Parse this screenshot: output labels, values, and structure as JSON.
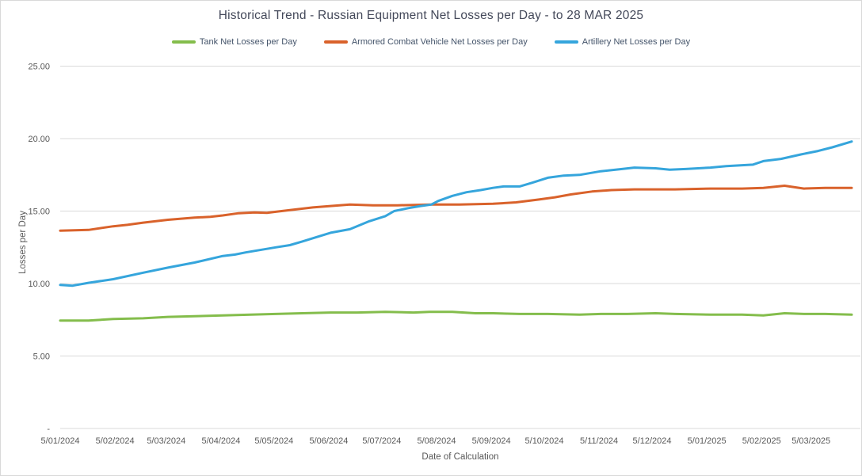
{
  "title": "Historical Trend - Russian Equipment Net Losses per Day - to 28 MAR 2025",
  "legend": {
    "items": [
      {
        "label": "Tank Net Losses per Day",
        "color": "#84bd4c"
      },
      {
        "label": "Armored Combat Vehicle Net Losses per Day",
        "color": "#d9622b"
      },
      {
        "label": "Artillery Net Losses per Day",
        "color": "#35a5dc"
      }
    ]
  },
  "y_axis": {
    "title": "Losses per Day",
    "ticks": [
      {
        "label": "25.00",
        "value": 25
      },
      {
        "label": "20.00",
        "value": 20
      },
      {
        "label": "15.00",
        "value": 15
      },
      {
        "label": "10.00",
        "value": 10
      },
      {
        "label": "5.00",
        "value": 5
      },
      {
        "label": "-",
        "value": 0
      }
    ]
  },
  "x_axis": {
    "title": "Date of Calculation",
    "ticks": [
      {
        "label": "5/01/2024",
        "day": 0
      },
      {
        "label": "5/02/2024",
        "day": 31
      },
      {
        "label": "5/03/2024",
        "day": 60
      },
      {
        "label": "5/04/2024",
        "day": 91
      },
      {
        "label": "5/05/2024",
        "day": 121
      },
      {
        "label": "5/06/2024",
        "day": 152
      },
      {
        "label": "5/07/2024",
        "day": 182
      },
      {
        "label": "5/08/2024",
        "day": 213
      },
      {
        "label": "5/09/2024",
        "day": 244
      },
      {
        "label": "5/10/2024",
        "day": 274
      },
      {
        "label": "5/11/2024",
        "day": 305
      },
      {
        "label": "5/12/2024",
        "day": 335
      },
      {
        "label": "5/01/2025",
        "day": 366
      },
      {
        "label": "5/02/2025",
        "day": 397
      },
      {
        "label": "5/03/2025",
        "day": 425
      }
    ]
  },
  "chart_data": {
    "type": "line",
    "title": "Historical Trend - Russian Equipment Net Losses per Day - to 28 MAR 2025",
    "xlabel": "Date of Calculation",
    "ylabel": "Losses per Day",
    "x_unit": "days since 5/01/2024 (x ticks = 5th of each month)",
    "x_range": [
      0,
      448
    ],
    "ylim": [
      0,
      25
    ],
    "grid": true,
    "legend_position": "top",
    "series": [
      {
        "name": "Tank Net Losses per Day",
        "color": "#84bd4c",
        "points": [
          [
            0,
            7.45
          ],
          [
            16,
            7.45
          ],
          [
            30,
            7.55
          ],
          [
            47,
            7.6
          ],
          [
            61,
            7.7
          ],
          [
            76,
            7.75
          ],
          [
            92,
            7.8
          ],
          [
            108,
            7.85
          ],
          [
            122,
            7.9
          ],
          [
            137,
            7.95
          ],
          [
            153,
            8.0
          ],
          [
            168,
            8.0
          ],
          [
            184,
            8.05
          ],
          [
            200,
            8.0
          ],
          [
            209,
            8.05
          ],
          [
            222,
            8.05
          ],
          [
            235,
            7.95
          ],
          [
            245,
            7.95
          ],
          [
            260,
            7.9
          ],
          [
            276,
            7.9
          ],
          [
            294,
            7.85
          ],
          [
            306,
            7.9
          ],
          [
            321,
            7.9
          ],
          [
            337,
            7.95
          ],
          [
            348,
            7.9
          ],
          [
            368,
            7.85
          ],
          [
            386,
            7.85
          ],
          [
            398,
            7.8
          ],
          [
            410,
            7.95
          ],
          [
            421,
            7.9
          ],
          [
            433,
            7.9
          ],
          [
            448,
            7.85
          ]
        ]
      },
      {
        "name": "Armored Combat Vehicle Net Losses per Day",
        "color": "#d9622b",
        "points": [
          [
            0,
            13.65
          ],
          [
            16,
            13.7
          ],
          [
            30,
            13.95
          ],
          [
            38,
            14.05
          ],
          [
            47,
            14.2
          ],
          [
            61,
            14.4
          ],
          [
            76,
            14.55
          ],
          [
            85,
            14.6
          ],
          [
            92,
            14.7
          ],
          [
            101,
            14.85
          ],
          [
            110,
            14.9
          ],
          [
            117,
            14.88
          ],
          [
            122,
            14.95
          ],
          [
            132,
            15.1
          ],
          [
            143,
            15.25
          ],
          [
            153,
            15.35
          ],
          [
            164,
            15.45
          ],
          [
            177,
            15.4
          ],
          [
            191,
            15.4
          ],
          [
            210,
            15.45
          ],
          [
            226,
            15.45
          ],
          [
            245,
            15.5
          ],
          [
            258,
            15.6
          ],
          [
            271,
            15.8
          ],
          [
            280,
            15.95
          ],
          [
            289,
            16.15
          ],
          [
            301,
            16.35
          ],
          [
            312,
            16.45
          ],
          [
            325,
            16.5
          ],
          [
            348,
            16.5
          ],
          [
            368,
            16.55
          ],
          [
            386,
            16.55
          ],
          [
            398,
            16.6
          ],
          [
            410,
            16.75
          ],
          [
            421,
            16.55
          ],
          [
            433,
            16.6
          ],
          [
            448,
            16.6
          ]
        ]
      },
      {
        "name": "Artillery Net Losses per Day",
        "color": "#35a5dc",
        "points": [
          [
            0,
            9.9
          ],
          [
            7,
            9.85
          ],
          [
            16,
            10.05
          ],
          [
            30,
            10.3
          ],
          [
            47,
            10.75
          ],
          [
            61,
            11.1
          ],
          [
            76,
            11.45
          ],
          [
            92,
            11.9
          ],
          [
            99,
            12.0
          ],
          [
            105,
            12.15
          ],
          [
            122,
            12.5
          ],
          [
            130,
            12.65
          ],
          [
            137,
            12.9
          ],
          [
            145,
            13.2
          ],
          [
            153,
            13.5
          ],
          [
            164,
            13.75
          ],
          [
            175,
            14.3
          ],
          [
            184,
            14.65
          ],
          [
            189,
            15.0
          ],
          [
            197,
            15.2
          ],
          [
            204,
            15.35
          ],
          [
            210,
            15.45
          ],
          [
            214,
            15.7
          ],
          [
            222,
            16.05
          ],
          [
            230,
            16.3
          ],
          [
            238,
            16.45
          ],
          [
            245,
            16.6
          ],
          [
            251,
            16.7
          ],
          [
            260,
            16.7
          ],
          [
            267,
            16.95
          ],
          [
            276,
            17.3
          ],
          [
            285,
            17.45
          ],
          [
            294,
            17.5
          ],
          [
            306,
            17.75
          ],
          [
            318,
            17.9
          ],
          [
            325,
            18.0
          ],
          [
            337,
            17.95
          ],
          [
            345,
            17.85
          ],
          [
            354,
            17.9
          ],
          [
            368,
            18.0
          ],
          [
            377,
            18.1
          ],
          [
            392,
            18.2
          ],
          [
            398,
            18.45
          ],
          [
            408,
            18.6
          ],
          [
            419,
            18.9
          ],
          [
            429,
            19.15
          ],
          [
            437,
            19.4
          ],
          [
            448,
            19.8
          ]
        ]
      }
    ]
  },
  "colors": {
    "grid": "#d9d9d9",
    "tick_text": "#595959",
    "legend_text": "#44546a",
    "title_text": "#44495a",
    "background": "#ffffff"
  }
}
